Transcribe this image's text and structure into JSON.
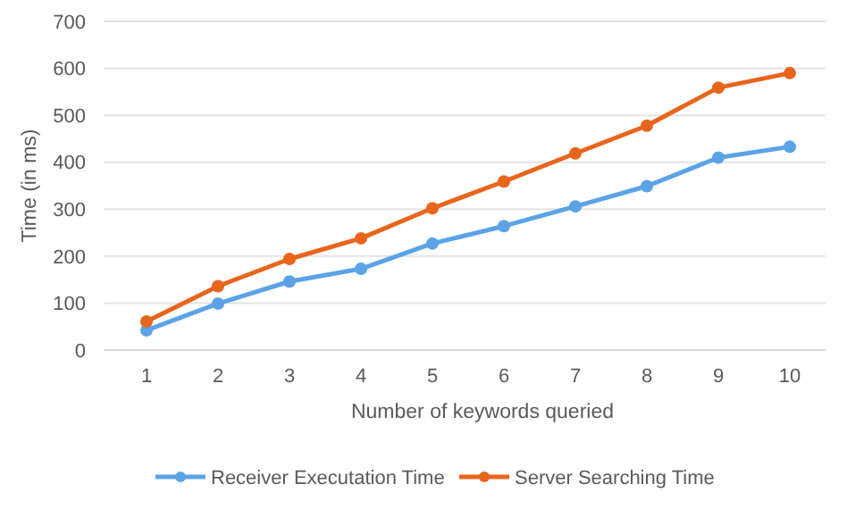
{
  "chart_data": {
    "type": "line",
    "xlabel": "Number of keywords queried",
    "ylabel": "Time (in ms)",
    "categories": [
      "1",
      "2",
      "3",
      "4",
      "5",
      "6",
      "7",
      "8",
      "9",
      "10"
    ],
    "series": [
      {
        "name": "Receiver Executation Time",
        "color": "#5ba3e6",
        "values": [
          42,
          99,
          146,
          173,
          227,
          264,
          306,
          349,
          410,
          433
        ]
      },
      {
        "name": "Server Searching Time",
        "color": "#e8651e",
        "values": [
          61,
          136,
          194,
          238,
          302,
          359,
          419,
          478,
          559,
          590
        ]
      }
    ],
    "ylim": [
      0,
      700
    ],
    "yticks": [
      0,
      100,
      200,
      300,
      400,
      500,
      600,
      700
    ],
    "grid": "y",
    "legend": "bottom",
    "marker": "circle",
    "line_style": "solid"
  }
}
